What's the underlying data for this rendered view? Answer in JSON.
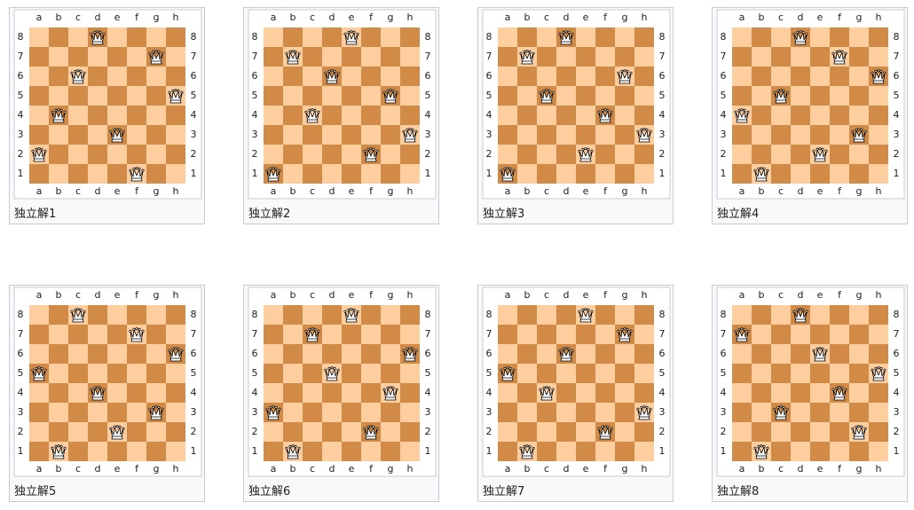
{
  "files": [
    "a",
    "b",
    "c",
    "d",
    "e",
    "f",
    "g",
    "h"
  ],
  "ranks": [
    8,
    7,
    6,
    5,
    4,
    3,
    2,
    1
  ],
  "boards": [
    {
      "caption": "独立解1",
      "queens": [
        2,
        4,
        6,
        8,
        3,
        1,
        7,
        5
      ]
    },
    {
      "caption": "独立解2",
      "queens": [
        1,
        7,
        4,
        6,
        8,
        2,
        5,
        3
      ]
    },
    {
      "caption": "独立解3",
      "queens": [
        1,
        7,
        5,
        8,
        2,
        4,
        6,
        3
      ]
    },
    {
      "caption": "独立解4",
      "queens": [
        4,
        1,
        5,
        8,
        2,
        7,
        3,
        6
      ]
    },
    {
      "caption": "独立解5",
      "queens": [
        5,
        1,
        8,
        4,
        2,
        7,
        3,
        6
      ]
    },
    {
      "caption": "独立解6",
      "queens": [
        3,
        1,
        7,
        5,
        8,
        2,
        4,
        6
      ]
    },
    {
      "caption": "独立解7",
      "queens": [
        5,
        1,
        4,
        6,
        8,
        2,
        7,
        3
      ]
    },
    {
      "caption": "独立解8",
      "queens": [
        7,
        1,
        3,
        8,
        6,
        4,
        2,
        5
      ]
    }
  ]
}
